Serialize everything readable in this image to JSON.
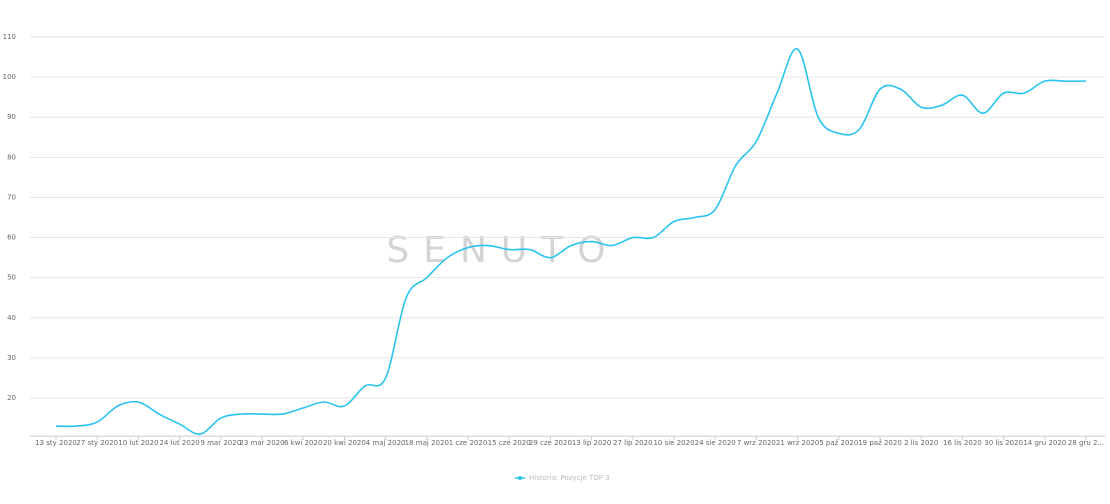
{
  "chart_data": {
    "type": "line",
    "watermark": "SENUTO",
    "categories": [
      "13 sty 2020",
      null,
      "27 sty 2020",
      null,
      "10 lut 2020",
      null,
      "24 lut 2020",
      null,
      "9 mar 2020",
      null,
      "23 mar 2020",
      null,
      "6 kwi 2020",
      null,
      "20 kwi 2020",
      null,
      "4 maj 2020",
      null,
      "18 maj 2020",
      null,
      "1 cze 2020",
      null,
      "15 cze 2020",
      null,
      "29 cze 2020",
      null,
      "13 lip 2020",
      null,
      "27 lip 2020",
      null,
      "10 sie 2020",
      null,
      "24 sie 2020",
      null,
      "7 wrz 2020",
      null,
      "21 wrz 2020",
      null,
      "5 paź 2020",
      null,
      "19 paź 2020",
      null,
      "2 lis 2020",
      null,
      "16 lis 2020",
      null,
      "30 lis 2020",
      null,
      "14 gru 2020",
      null,
      "28 gru 2..."
    ],
    "series": [
      {
        "name": "Historia: Pozycje TOP 3",
        "color": "#29c3f0",
        "values": [
          13,
          13,
          14,
          18,
          19,
          16,
          13.5,
          11,
          15,
          16,
          16,
          16,
          17.5,
          19,
          18,
          23,
          25,
          45,
          50,
          55,
          57.5,
          58,
          57,
          57,
          55,
          58,
          59,
          58,
          60,
          60,
          64,
          65,
          67,
          78,
          84,
          96,
          107,
          90,
          86,
          87,
          97,
          97,
          92.5,
          93,
          95.5,
          91,
          96,
          96,
          99,
          99,
          99
        ]
      }
    ],
    "ylim": [
      10.5,
      110
    ],
    "yticks": [
      20,
      30,
      40,
      50,
      60,
      70,
      80,
      90,
      100,
      110
    ],
    "grid": true,
    "legend": "bottom"
  }
}
